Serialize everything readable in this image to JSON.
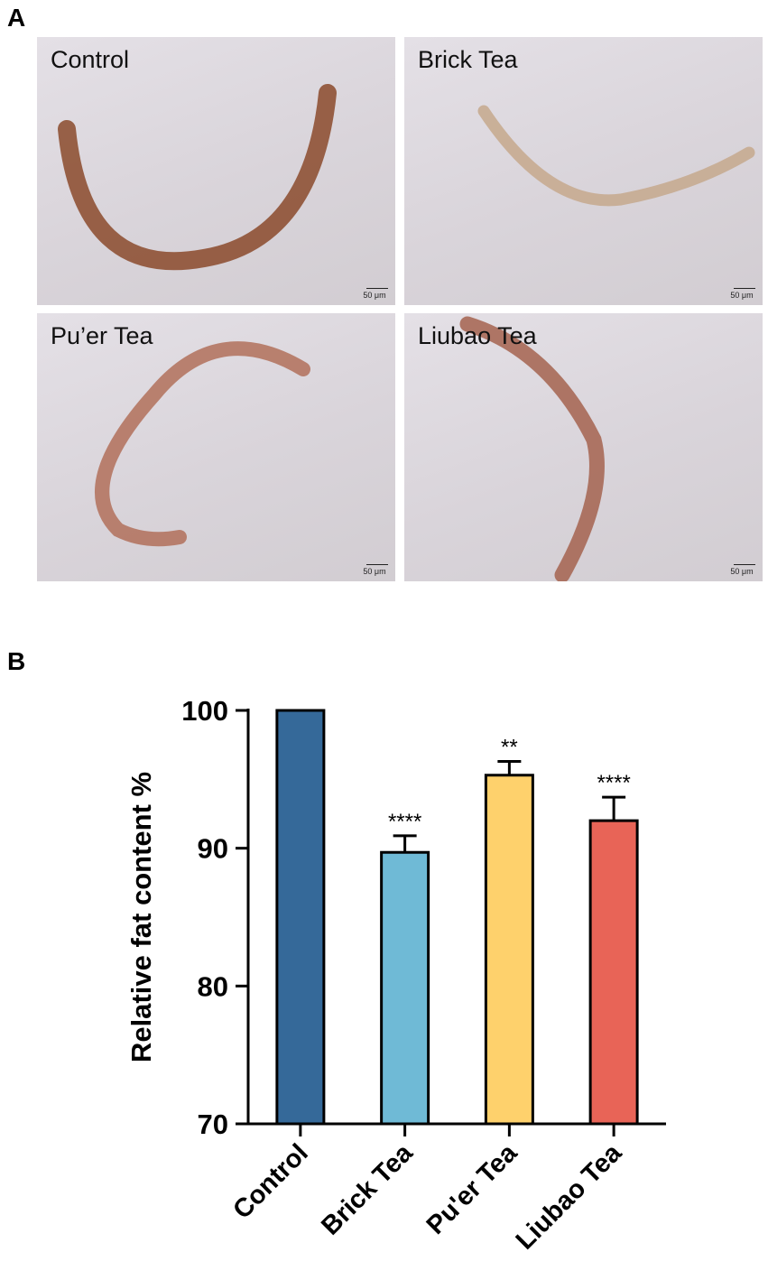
{
  "panels": {
    "a": {
      "letter": "A",
      "images": [
        {
          "label": "Control",
          "scale_text": "50 μm",
          "stain": "#8b4a2c"
        },
        {
          "label": "Brick Tea",
          "scale_text": "50 μm",
          "stain": "#c6a88c"
        },
        {
          "label": "Pu’er Tea",
          "scale_text": "50 μm",
          "stain": "#b2705a"
        },
        {
          "label": "Liubao Tea",
          "scale_text": "50 μm",
          "stain": "#a5634f"
        }
      ]
    },
    "b": {
      "letter": "B"
    }
  },
  "chart_data": {
    "type": "bar",
    "categories": [
      "Control",
      "Brick Tea",
      "Pu'er Tea",
      "Liubao Tea"
    ],
    "values": [
      100,
      89.7,
      95.3,
      92.0
    ],
    "errors": [
      0,
      1.2,
      1.0,
      1.7
    ],
    "significance": [
      "",
      "****",
      "**",
      "****"
    ],
    "colors": [
      "#356999",
      "#6fbad6",
      "#fed16c",
      "#e86457"
    ],
    "ylabel": "Relative fat content %",
    "ylim": [
      70,
      100
    ],
    "yticks": [
      70,
      80,
      90,
      100
    ],
    "grid": false
  }
}
